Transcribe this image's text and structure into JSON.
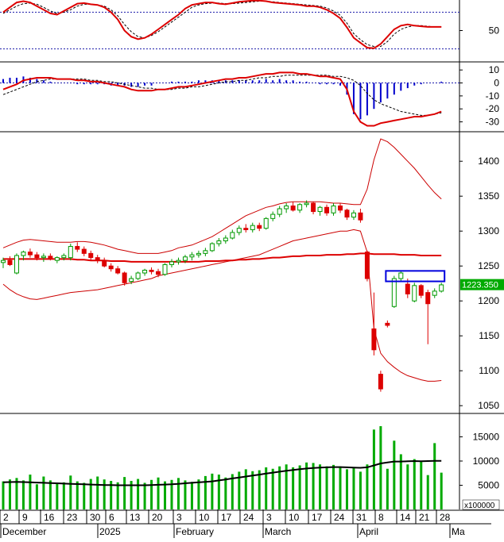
{
  "chart_data": [
    {
      "panel": "stochastic",
      "type": "line",
      "ylim": [
        0,
        100
      ],
      "y_ticks": [
        "50"
      ],
      "reference_lines": [
        20,
        80
      ],
      "series": [
        {
          "values": [
            80,
            88,
            96,
            98,
            96,
            90,
            84,
            78,
            76,
            82,
            88,
            94,
            95,
            93,
            92,
            88,
            80,
            68,
            50,
            40,
            36,
            38,
            44,
            52,
            60,
            68,
            76,
            86,
            92,
            94,
            96,
            96,
            94,
            93,
            95,
            97,
            98,
            99,
            99,
            98,
            96,
            95,
            94,
            93,
            92,
            90,
            90,
            88,
            84,
            78,
            70,
            55,
            38,
            30,
            22,
            21,
            28,
            40,
            52,
            58,
            60,
            58,
            57,
            56,
            56,
            56
          ],
          "color": "#dd0000"
        },
        {
          "values": [
            78,
            84,
            90,
            94,
            95,
            93,
            88,
            82,
            78,
            80,
            84,
            90,
            93,
            93,
            92,
            90,
            84,
            74,
            60,
            48,
            40,
            38,
            42,
            48,
            56,
            64,
            72,
            80,
            88,
            92,
            94,
            95,
            95,
            94,
            94,
            95,
            96,
            97,
            98,
            98,
            97,
            96,
            95,
            94,
            93,
            92,
            91,
            90,
            87,
            82,
            75,
            62,
            45,
            35,
            27,
            24,
            24,
            32,
            44,
            52,
            56,
            58,
            58,
            57,
            56,
            56
          ],
          "color": "#000000",
          "style": "dashed"
        }
      ]
    },
    {
      "panel": "macd",
      "type": "line+bar",
      "ylim": [
        -37,
        15
      ],
      "y_ticks": [
        "10",
        "0",
        "-10",
        "-20",
        "-30"
      ],
      "macd_line": [
        -5,
        -3,
        -1,
        2,
        3,
        4,
        4,
        4,
        3,
        3,
        3,
        2,
        2,
        1,
        1,
        0,
        -1,
        -2,
        -3,
        -5,
        -6,
        -6,
        -6,
        -5,
        -5,
        -4,
        -3,
        -3,
        -2,
        -1,
        0,
        1,
        2,
        3,
        3,
        4,
        4,
        5,
        6,
        7,
        7,
        8,
        8,
        8,
        7,
        7,
        6,
        5,
        5,
        4,
        3,
        -5,
        -22,
        -30,
        -33,
        -33,
        -31,
        -30,
        -29,
        -28,
        -27,
        -26,
        -26,
        -25,
        -24,
        -22
      ],
      "signal_line": [
        -9,
        -7,
        -5,
        -3,
        -1,
        1,
        2,
        3,
        3,
        3,
        3,
        3,
        3,
        2,
        2,
        1,
        1,
        0,
        -1,
        -2,
        -3,
        -4,
        -4,
        -5,
        -5,
        -5,
        -4,
        -4,
        -3,
        -3,
        -2,
        -1,
        0,
        1,
        1,
        2,
        2,
        3,
        4,
        4,
        5,
        5,
        6,
        6,
        6,
        6,
        6,
        6,
        6,
        5,
        5,
        4,
        2,
        -2,
        -8,
        -13,
        -16,
        -18,
        -20,
        -22,
        -23,
        -24,
        -25,
        -25,
        -24,
        -23
      ],
      "histogram": [
        3,
        4,
        4,
        5,
        4,
        3,
        2,
        1,
        0,
        0,
        0,
        -1,
        -1,
        -1,
        -1,
        -1,
        -2,
        -2,
        -2,
        -3,
        -3,
        -2,
        -2,
        0,
        0,
        1,
        1,
        1,
        1,
        2,
        2,
        2,
        2,
        2,
        2,
        2,
        2,
        2,
        2,
        3,
        2,
        3,
        2,
        2,
        1,
        1,
        0,
        -1,
        -1,
        -1,
        -2,
        -9,
        -24,
        -28,
        -25,
        -20,
        -15,
        -12,
        -9,
        -6,
        -4,
        -2,
        -1,
        0,
        0,
        1
      ]
    },
    {
      "panel": "price",
      "type": "candlestick",
      "ylim": [
        1040,
        1440
      ],
      "y_ticks": [
        "1400",
        "1350",
        "1300",
        "1250",
        "1200",
        "1150",
        "1100",
        "1050"
      ],
      "last_price_label": "1223.350",
      "candles": [
        {
          "o": 1255,
          "h": 1262,
          "l": 1247,
          "c": 1258
        },
        {
          "o": 1258,
          "h": 1264,
          "l": 1250,
          "c": 1252
        },
        {
          "o": 1240,
          "h": 1268,
          "l": 1238,
          "c": 1265
        },
        {
          "o": 1265,
          "h": 1272,
          "l": 1258,
          "c": 1270
        },
        {
          "o": 1270,
          "h": 1275,
          "l": 1262,
          "c": 1266
        },
        {
          "o": 1266,
          "h": 1270,
          "l": 1258,
          "c": 1262
        },
        {
          "o": 1262,
          "h": 1268,
          "l": 1256,
          "c": 1264
        },
        {
          "o": 1264,
          "h": 1268,
          "l": 1258,
          "c": 1261
        },
        {
          "o": 1258,
          "h": 1264,
          "l": 1254,
          "c": 1262
        },
        {
          "o": 1262,
          "h": 1268,
          "l": 1258,
          "c": 1265
        },
        {
          "o": 1262,
          "h": 1282,
          "l": 1258,
          "c": 1278
        },
        {
          "o": 1278,
          "h": 1284,
          "l": 1270,
          "c": 1274
        },
        {
          "o": 1274,
          "h": 1278,
          "l": 1264,
          "c": 1268
        },
        {
          "o": 1268,
          "h": 1272,
          "l": 1258,
          "c": 1262
        },
        {
          "o": 1262,
          "h": 1266,
          "l": 1254,
          "c": 1258
        },
        {
          "o": 1258,
          "h": 1262,
          "l": 1248,
          "c": 1250
        },
        {
          "o": 1250,
          "h": 1254,
          "l": 1242,
          "c": 1246
        },
        {
          "o": 1246,
          "h": 1250,
          "l": 1238,
          "c": 1240
        },
        {
          "o": 1240,
          "h": 1242,
          "l": 1222,
          "c": 1226
        },
        {
          "o": 1228,
          "h": 1236,
          "l": 1224,
          "c": 1232
        },
        {
          "o": 1232,
          "h": 1242,
          "l": 1230,
          "c": 1240
        },
        {
          "o": 1240,
          "h": 1246,
          "l": 1236,
          "c": 1244
        },
        {
          "o": 1244,
          "h": 1248,
          "l": 1238,
          "c": 1242
        },
        {
          "o": 1242,
          "h": 1246,
          "l": 1234,
          "c": 1238
        },
        {
          "o": 1238,
          "h": 1254,
          "l": 1236,
          "c": 1252
        },
        {
          "o": 1252,
          "h": 1260,
          "l": 1248,
          "c": 1256
        },
        {
          "o": 1256,
          "h": 1262,
          "l": 1252,
          "c": 1258
        },
        {
          "o": 1258,
          "h": 1266,
          "l": 1254,
          "c": 1263
        },
        {
          "o": 1263,
          "h": 1270,
          "l": 1258,
          "c": 1266
        },
        {
          "o": 1266,
          "h": 1272,
          "l": 1262,
          "c": 1268
        },
        {
          "o": 1268,
          "h": 1276,
          "l": 1264,
          "c": 1272
        },
        {
          "o": 1272,
          "h": 1284,
          "l": 1270,
          "c": 1282
        },
        {
          "o": 1282,
          "h": 1290,
          "l": 1278,
          "c": 1286
        },
        {
          "o": 1286,
          "h": 1294,
          "l": 1282,
          "c": 1290
        },
        {
          "o": 1290,
          "h": 1302,
          "l": 1288,
          "c": 1298
        },
        {
          "o": 1298,
          "h": 1308,
          "l": 1294,
          "c": 1304
        },
        {
          "o": 1304,
          "h": 1310,
          "l": 1298,
          "c": 1302
        },
        {
          "o": 1302,
          "h": 1312,
          "l": 1298,
          "c": 1308
        },
        {
          "o": 1308,
          "h": 1312,
          "l": 1300,
          "c": 1304
        },
        {
          "o": 1304,
          "h": 1320,
          "l": 1302,
          "c": 1318
        },
        {
          "o": 1318,
          "h": 1328,
          "l": 1314,
          "c": 1324
        },
        {
          "o": 1324,
          "h": 1336,
          "l": 1320,
          "c": 1332
        },
        {
          "o": 1332,
          "h": 1340,
          "l": 1326,
          "c": 1336
        },
        {
          "o": 1336,
          "h": 1342,
          "l": 1328,
          "c": 1330
        },
        {
          "o": 1330,
          "h": 1340,
          "l": 1326,
          "c": 1338
        },
        {
          "o": 1338,
          "h": 1344,
          "l": 1334,
          "c": 1340
        },
        {
          "o": 1340,
          "h": 1342,
          "l": 1324,
          "c": 1328
        },
        {
          "o": 1328,
          "h": 1336,
          "l": 1322,
          "c": 1334
        },
        {
          "o": 1334,
          "h": 1338,
          "l": 1322,
          "c": 1326
        },
        {
          "o": 1326,
          "h": 1340,
          "l": 1322,
          "c": 1336
        },
        {
          "o": 1336,
          "h": 1340,
          "l": 1326,
          "c": 1330
        },
        {
          "o": 1330,
          "h": 1332,
          "l": 1316,
          "c": 1320
        },
        {
          "o": 1320,
          "h": 1330,
          "l": 1316,
          "c": 1326
        },
        {
          "o": 1326,
          "h": 1332,
          "l": 1312,
          "c": 1316
        },
        {
          "o": 1270,
          "h": 1272,
          "l": 1228,
          "c": 1232
        },
        {
          "o": 1160,
          "h": 1212,
          "l": 1122,
          "c": 1130
        },
        {
          "o": 1095,
          "h": 1100,
          "l": 1070,
          "c": 1074
        },
        {
          "o": 1168,
          "h": 1172,
          "l": 1162,
          "c": 1165
        },
        {
          "o": 1192,
          "h": 1236,
          "l": 1190,
          "c": 1232
        },
        {
          "o": 1232,
          "h": 1243,
          "l": 1228,
          "c": 1240
        },
        {
          "o": 1224,
          "h": 1232,
          "l": 1204,
          "c": 1210
        },
        {
          "o": 1200,
          "h": 1226,
          "l": 1198,
          "c": 1222
        },
        {
          "o": 1222,
          "h": 1224,
          "l": 1204,
          "c": 1208
        },
        {
          "o": 1212,
          "h": 1216,
          "l": 1138,
          "c": 1196
        },
        {
          "o": 1208,
          "h": 1218,
          "l": 1204,
          "c": 1214
        },
        {
          "o": 1214,
          "h": 1226,
          "l": 1212,
          "c": 1223
        }
      ],
      "ma_line": [
        1260,
        1260,
        1260,
        1260,
        1260,
        1260,
        1260,
        1260,
        1260,
        1260,
        1260,
        1259,
        1259,
        1258,
        1258,
        1258,
        1257,
        1257,
        1257,
        1256,
        1256,
        1256,
        1256,
        1256,
        1256,
        1256,
        1256,
        1256,
        1256,
        1256,
        1257,
        1257,
        1257,
        1258,
        1258,
        1259,
        1259,
        1260,
        1260,
        1261,
        1262,
        1262,
        1263,
        1264,
        1264,
        1265,
        1265,
        1265,
        1266,
        1266,
        1266,
        1267,
        1267,
        1268,
        1268,
        1267,
        1267,
        1267,
        1267,
        1266,
        1266,
        1266,
        1265,
        1265,
        1265,
        1265
      ],
      "bb_upper": [
        1276,
        1280,
        1284,
        1287,
        1288,
        1287,
        1286,
        1285,
        1284,
        1284,
        1284,
        1285,
        1285,
        1284,
        1282,
        1280,
        1277,
        1274,
        1272,
        1270,
        1268,
        1268,
        1268,
        1268,
        1270,
        1272,
        1276,
        1278,
        1280,
        1284,
        1288,
        1292,
        1298,
        1304,
        1310,
        1316,
        1322,
        1326,
        1330,
        1334,
        1336,
        1339,
        1341,
        1342,
        1342,
        1342,
        1342,
        1342,
        1341,
        1340,
        1340,
        1339,
        1338,
        1338,
        1360,
        1402,
        1432,
        1428,
        1420,
        1410,
        1400,
        1390,
        1378,
        1366,
        1355,
        1346
      ],
      "bb_lower": [
        1224,
        1216,
        1210,
        1206,
        1203,
        1202,
        1204,
        1206,
        1208,
        1210,
        1212,
        1213,
        1214,
        1215,
        1216,
        1218,
        1220,
        1222,
        1224,
        1226,
        1228,
        1230,
        1232,
        1236,
        1238,
        1240,
        1242,
        1244,
        1246,
        1248,
        1250,
        1252,
        1254,
        1256,
        1258,
        1260,
        1262,
        1264,
        1266,
        1270,
        1274,
        1278,
        1282,
        1286,
        1288,
        1290,
        1292,
        1294,
        1296,
        1298,
        1300,
        1300,
        1302,
        1300,
        1270,
        1160,
        1125,
        1113,
        1105,
        1098,
        1093,
        1090,
        1087,
        1085,
        1085,
        1086
      ]
    },
    {
      "panel": "volume",
      "type": "bar+line",
      "ylim": [
        0,
        19500
      ],
      "y_ticks": [
        "15000",
        "10000",
        "5000"
      ],
      "unit_label": "x100000",
      "values": [
        5800,
        6200,
        6500,
        6000,
        7200,
        5200,
        6800,
        6000,
        5400,
        5600,
        7000,
        5800,
        5500,
        6300,
        6800,
        6200,
        5900,
        5600,
        6700,
        5900,
        6300,
        5500,
        6100,
        6600,
        5800,
        6100,
        6500,
        6000,
        5700,
        6200,
        6900,
        7400,
        7200,
        6600,
        7300,
        7800,
        8300,
        7900,
        8100,
        8700,
        8400,
        8900,
        9300,
        8700,
        9100,
        9700,
        9600,
        9300,
        8900,
        9200,
        8900,
        8300,
        8700,
        7800,
        9300,
        16500,
        17200,
        8400,
        14200,
        11400,
        9300,
        10400,
        9900,
        7100,
        13700,
        7600
      ],
      "ma_line": [
        5600,
        5650,
        5700,
        5650,
        5600,
        5550,
        5500,
        5450,
        5400,
        5350,
        5300,
        5250,
        5200,
        5150,
        5100,
        5050,
        5050,
        5000,
        5000,
        5000,
        5000,
        5000,
        5050,
        5100,
        5150,
        5200,
        5300,
        5400,
        5500,
        5600,
        5700,
        5800,
        6000,
        6200,
        6400,
        6600,
        6800,
        7000,
        7200,
        7400,
        7600,
        7800,
        8000,
        8150,
        8300,
        8450,
        8550,
        8650,
        8700,
        8750,
        8750,
        8700,
        8650,
        8600,
        8700,
        9100,
        9500,
        9700,
        9900,
        9900,
        9950,
        10000,
        9950,
        10000,
        10050,
        10050
      ]
    }
  ],
  "x_axis": {
    "day_labels": [
      "2",
      "9",
      "16",
      "23",
      "30",
      "6",
      "13",
      "20",
      "3",
      "10",
      "17",
      "24",
      "3",
      "10",
      "17",
      "24",
      "31",
      "8",
      "14",
      "21",
      "28"
    ],
    "month_labels": [
      "December",
      "2025",
      "February",
      "March",
      "April",
      "Ma"
    ]
  },
  "colors": {
    "up": "#009900",
    "down": "#dd0000",
    "stoch_k": "#dd0000",
    "macd_hist": "#0000cc",
    "volume": "#00aa00",
    "highlight_box": "#0000dd",
    "price_tag_bg": "#00aa00"
  }
}
